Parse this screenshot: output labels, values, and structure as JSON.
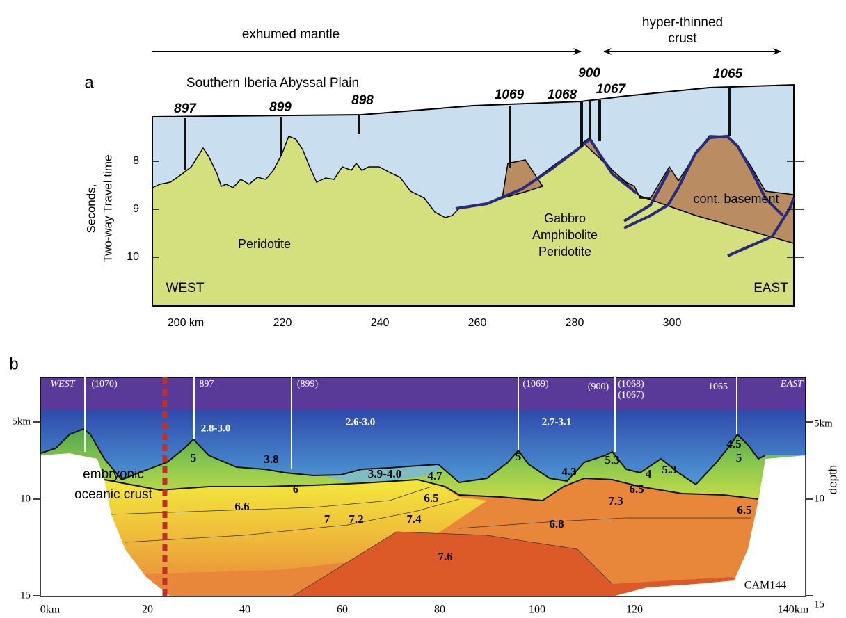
{
  "panel_a": {
    "label": "a",
    "zone_left": "exhumed mantle",
    "zone_right": [
      "hyper-thinned",
      "crust"
    ],
    "title": "Southern Iberia Abyssal Plain",
    "sites": [
      "897",
      "899",
      "898",
      "1069",
      "1068",
      "900",
      "1067",
      "1065"
    ],
    "y_axis_label": [
      "Seconds,",
      "Two-way Travel time"
    ],
    "yticks": [
      8,
      9,
      10
    ],
    "xticks": [
      "200 km",
      220,
      240,
      260,
      280,
      300
    ],
    "rock_labels": {
      "peridotite": "Peridotite",
      "mixed": [
        "Gabbro",
        "Amphibolite",
        "Peridotite"
      ],
      "basement": "cont. basement"
    },
    "west": "WEST",
    "east": "EAST"
  },
  "panel_b": {
    "label": "b",
    "west": "WEST",
    "east": "EAST",
    "sites": [
      "(1070)",
      "897",
      "(899)",
      "(1069)",
      "(900)",
      "(1068)",
      "(1067)",
      "1065"
    ],
    "velocities": [
      "2.8-3.0",
      "2.6-3.0",
      "2.7-3.1",
      "3.8",
      "3.9-4.0",
      "4.7",
      "5",
      "5",
      "4.3",
      "5.3",
      "4",
      "5.3",
      "4.5",
      "5",
      "6",
      "6.6",
      "7",
      "7.2",
      "7.4",
      "6.5",
      "6.5",
      "6.5",
      "6.8",
      "7.3",
      "7.6"
    ],
    "annotation": [
      "embryonic",
      "oceanic crust"
    ],
    "profile": "CAM144",
    "left_ticks": [
      "5km",
      10,
      15
    ],
    "right_ticks": [
      "5km",
      10,
      15
    ],
    "y_axis_label": "depth",
    "xticks": [
      "0km",
      20,
      40,
      60,
      80,
      100,
      120,
      "140km"
    ]
  }
}
